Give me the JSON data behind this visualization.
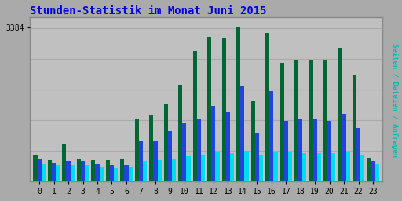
{
  "title": "Stunden-Statistik im Monat Juni 2015",
  "title_color": "#0000dd",
  "title_fontsize": 10,
  "xlabel_values": [
    "0",
    "1",
    "2",
    "3",
    "4",
    "5",
    "6",
    "7",
    "8",
    "9",
    "10",
    "11",
    "12",
    "13",
    "14",
    "15",
    "16",
    "17",
    "18",
    "19",
    "20",
    "21",
    "22",
    "23"
  ],
  "ylabel": "3384",
  "ylabel_color": "#000000",
  "right_label": "Seiten / Dateien / Anfragen",
  "right_label_color": "#00bbbb",
  "background_outer": "#aaaaaa",
  "background_inner": "#c0c0c0",
  "bar_width": 0.28,
  "colors_green": "#006633",
  "colors_blue": "#2244dd",
  "colors_cyan": "#00ddee",
  "seiten": [
    600,
    480,
    820,
    510,
    480,
    480,
    490,
    1370,
    1470,
    1700,
    2120,
    2870,
    3180,
    3130,
    3384,
    1760,
    3250,
    2600,
    2680,
    2680,
    2660,
    2930,
    2350,
    530
  ],
  "dateien": [
    500,
    420,
    450,
    450,
    380,
    360,
    370,
    880,
    900,
    1100,
    1280,
    1380,
    1650,
    1520,
    2090,
    1070,
    1980,
    1340,
    1380,
    1370,
    1340,
    1490,
    1170,
    460
  ],
  "anfragen": [
    390,
    370,
    360,
    370,
    310,
    300,
    310,
    450,
    470,
    500,
    560,
    590,
    640,
    620,
    670,
    600,
    660,
    640,
    630,
    620,
    620,
    650,
    575,
    385
  ],
  "ylim": [
    0,
    3600
  ],
  "ytick_val": 3384,
  "grid_y": [
    672,
    1344,
    2016,
    2688,
    3360
  ],
  "grid_color": "#aaaaaa",
  "border_color": "#888888"
}
